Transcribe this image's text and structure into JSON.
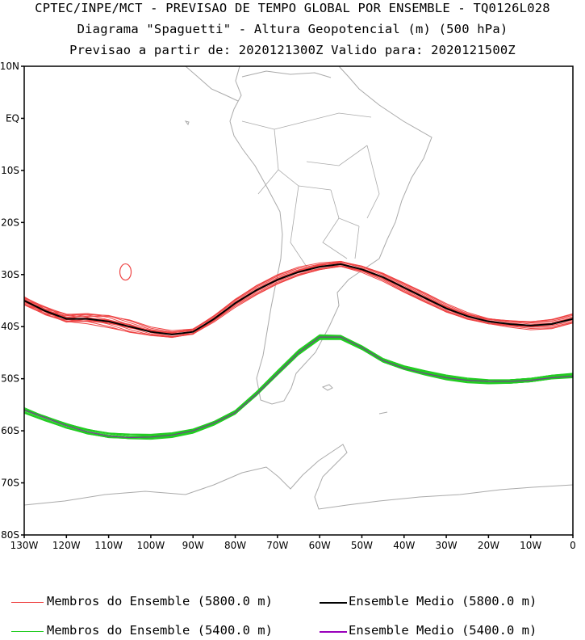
{
  "header": {
    "title_line1": "CPTEC/INPE/MCT - PREVISAO DE TEMPO GLOBAL POR ENSEMBLE - TQ0126L028",
    "title_line2": "Diagrama \"Spaguetti\" - Altura Geopotencial (m) (500 hPa)",
    "title_line3": "Previsao a partir de: 2020121300Z  Valido para: 2020121500Z"
  },
  "axes": {
    "lat_labels": [
      "10N",
      "EQ",
      "10S",
      "20S",
      "30S",
      "40S",
      "50S",
      "60S",
      "70S",
      "80S"
    ],
    "lon_labels": [
      "130W",
      "120W",
      "110W",
      "100W",
      "90W",
      "80W",
      "70W",
      "60W",
      "50W",
      "40W",
      "30W",
      "20W",
      "10W",
      "0"
    ],
    "lat_range": [
      10,
      -80
    ],
    "lon_range": [
      -130,
      0
    ]
  },
  "map_data": {
    "contour_5800_mean": [
      [
        -130,
        -35
      ],
      [
        -125,
        -37
      ],
      [
        -120,
        -38.5
      ],
      [
        -115,
        -38.5
      ],
      [
        -110,
        -39
      ],
      [
        -105,
        -40
      ],
      [
        -100,
        -41
      ],
      [
        -95,
        -41.5
      ],
      [
        -90,
        -41
      ],
      [
        -85,
        -38.5
      ],
      [
        -80,
        -35.5
      ],
      [
        -75,
        -33
      ],
      [
        -70,
        -31
      ],
      [
        -65,
        -29.5
      ],
      [
        -60,
        -28.5
      ],
      [
        -55,
        -28
      ],
      [
        -50,
        -29
      ],
      [
        -45,
        -30.5
      ],
      [
        -40,
        -32.5
      ],
      [
        -35,
        -34.5
      ],
      [
        -30,
        -36.5
      ],
      [
        -25,
        -38
      ],
      [
        -20,
        -39
      ],
      [
        -15,
        -39.5
      ],
      [
        -10,
        -39.8
      ],
      [
        -5,
        -39.5
      ],
      [
        0,
        -38.5
      ]
    ],
    "contour_5400_mean": [
      [
        -130,
        -56
      ],
      [
        -125,
        -57.5
      ],
      [
        -120,
        -59
      ],
      [
        -115,
        -60.2
      ],
      [
        -110,
        -61
      ],
      [
        -105,
        -61.3
      ],
      [
        -100,
        -61.2
      ],
      [
        -95,
        -60.8
      ],
      [
        -90,
        -60
      ],
      [
        -85,
        -58.5
      ],
      [
        -80,
        -56.5
      ],
      [
        -75,
        -53
      ],
      [
        -70,
        -49
      ],
      [
        -65,
        -45
      ],
      [
        -60,
        -42
      ],
      [
        -55,
        -42
      ],
      [
        -50,
        -44
      ],
      [
        -45,
        -46.5
      ],
      [
        -40,
        -48
      ],
      [
        -35,
        -49
      ],
      [
        -30,
        -49.8
      ],
      [
        -25,
        -50.3
      ],
      [
        -20,
        -50.5
      ],
      [
        -15,
        -50.5
      ],
      [
        -10,
        -50.3
      ],
      [
        -5,
        -49.8
      ],
      [
        0,
        -49.5
      ]
    ],
    "isolated_contour": {
      "lon": -106,
      "lat": -29.5
    }
  },
  "legend": {
    "members_5800": "Membros do Ensemble (5800.0 m)",
    "mean_5800": "Ensemble Medio (5800.0 m)",
    "members_5400": "Membros do Ensemble (5400.0 m)",
    "mean_5400": "Ensemble Medio (5400.0 m)"
  },
  "colors": {
    "members_5800": "#ee4444",
    "mean_5800": "#000000",
    "members_5400": "#22cc22",
    "mean_5400": "#9900bb",
    "coastline": "#aaaaaa"
  }
}
